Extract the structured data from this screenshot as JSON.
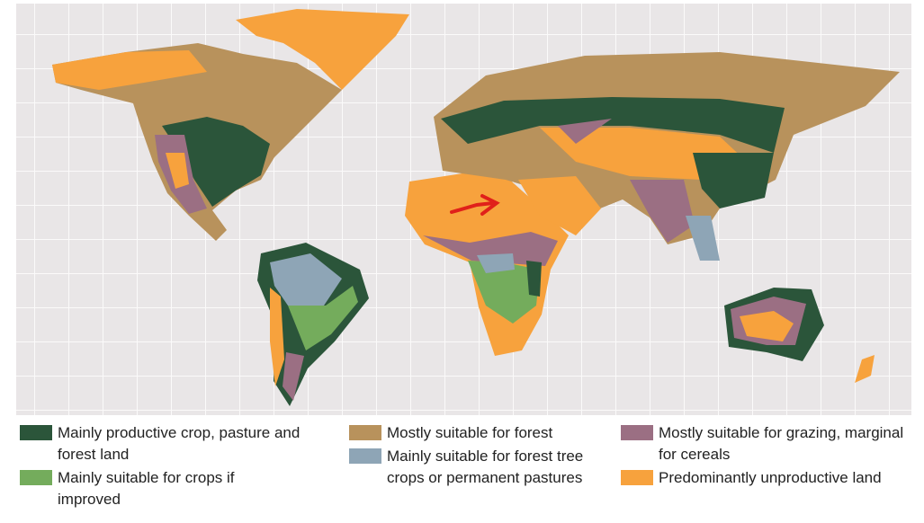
{
  "legend": {
    "items": [
      {
        "label": "Mainly productive crop, pasture and forest land",
        "color": "#2b553a"
      },
      {
        "label": "Mainly suitable for crops if improved",
        "color": "#74ac5c"
      },
      {
        "label": "Mostly suitable for forest",
        "color": "#b8925c"
      },
      {
        "label": "Mainly suitable for forest tree crops or permanent pastures",
        "color": "#8ea5b6"
      },
      {
        "label": "Mostly suitable for grazing, marginal for cereals",
        "color": "#9b6f83"
      },
      {
        "label": "Predominantly unproductive land",
        "color": "#f7a23d"
      }
    ]
  }
}
